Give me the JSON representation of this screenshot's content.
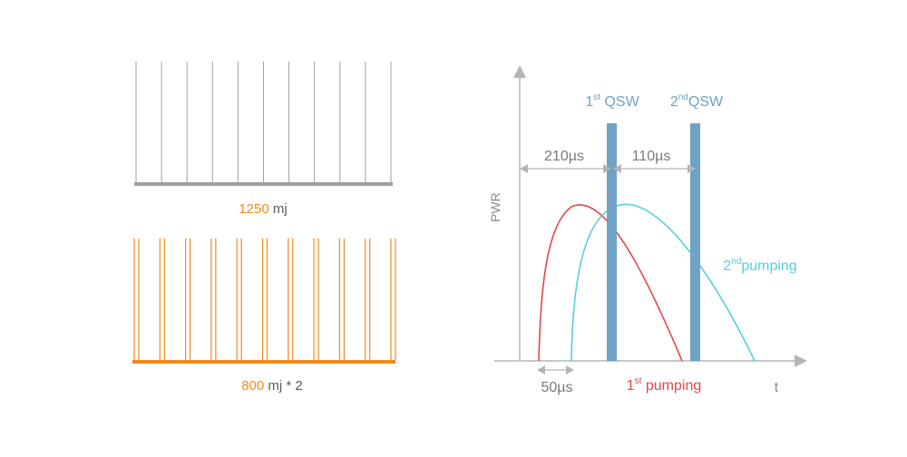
{
  "left_panel": {
    "top_train": {
      "pulse_count": 11,
      "color": "#9e9e9e",
      "value": "1250",
      "unit": " mj"
    },
    "bottom_train": {
      "pulse_pairs": 11,
      "color": "#f08a1e",
      "value": "800",
      "unit": " mj * 2"
    },
    "accent_color": "#f08a1e",
    "label_color": "#5a5a5a"
  },
  "right_panel": {
    "y_axis_label": "PWR",
    "x_axis_label": "t",
    "qsw1": {
      "sup": "st",
      "prefix": "1",
      "text": " QSW"
    },
    "qsw2": {
      "sup": "nd",
      "prefix": "2",
      "text": "QSW"
    },
    "interval_1": "210µs",
    "interval_2": "110µs",
    "offset": "50µs",
    "pumping1": {
      "prefix": "1",
      "sup": "st",
      "text": " pumping"
    },
    "pumping2": {
      "prefix": "2",
      "sup": "nd",
      "text": "pumping"
    },
    "colors": {
      "axis": "#b5b5b5",
      "qsw_bar": "#6fa2c4",
      "qsw_text": "#6fa2c4",
      "pumping1": "#e0474c",
      "pumping2": "#55d0d9",
      "dim_text": "#7a7a7a"
    }
  }
}
